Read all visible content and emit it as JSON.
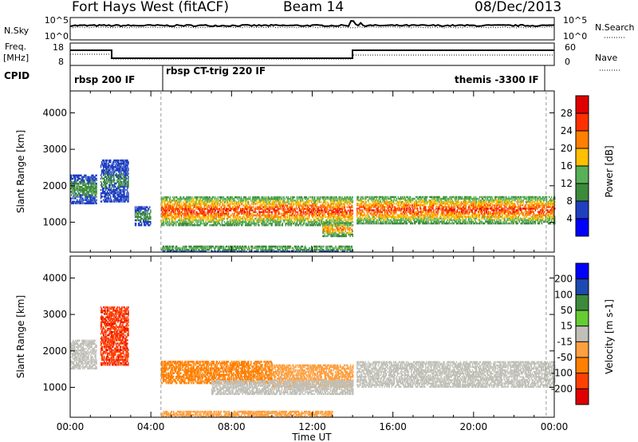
{
  "header": {
    "station": "Fort Hays West (fitACF)",
    "beam": "Beam 14",
    "date": "08/Dec/2013"
  },
  "top_strip": {
    "left_label": "N.Sky",
    "left_ticks": [
      "10^5",
      "10^0"
    ],
    "right_label": "N.Search",
    "right_ticks": [
      "10^5",
      "10^0"
    ]
  },
  "freq_strip": {
    "left_label_1": "Freq.",
    "left_label_2": "[MHz]",
    "left_ticks": [
      "18",
      "8"
    ],
    "right_label": "Nave",
    "right_ticks": [
      "60",
      "0"
    ]
  },
  "cpid": {
    "label": "CPID",
    "segments": [
      "rbsp 200 IF",
      "rbsp CT-trig 220 IF",
      "themis -3300 IF"
    ]
  },
  "x_axis": {
    "label": "Time UT",
    "ticks": [
      "00:00",
      "04:00",
      "08:00",
      "12:00",
      "16:00",
      "20:00",
      "00:00"
    ]
  },
  "colors": {
    "power_scale": [
      "#0000ff",
      "#2040c0",
      "#3c8a3c",
      "#58b058",
      "#ffc000",
      "#ff8000",
      "#ff3000",
      "#e00000"
    ],
    "velocity_scale": [
      "#0000ff",
      "#1c4ab0",
      "#3c8a3c",
      "#66cc33",
      "#c0c0b8",
      "#ffa040",
      "#ff8000",
      "#ff4000",
      "#e00000"
    ]
  },
  "chart_data": [
    {
      "type": "heatmap",
      "name": "power",
      "ylabel": "Slant Range [km]",
      "xlabel": "Time UT",
      "xlim_hours": [
        0,
        24
      ],
      "ylim_km": [
        180,
        4600
      ],
      "yticks": [
        "1000",
        "2000",
        "3000",
        "4000"
      ],
      "colorbar": {
        "label": "Power [dB]",
        "range": [
          0,
          32
        ],
        "ticks": [
          "4",
          "8",
          "12",
          "16",
          "20",
          "24",
          "28"
        ]
      },
      "scatter_regions": [
        {
          "t_start": 0.0,
          "t_end": 1.3,
          "range_low": 1500,
          "range_high": 2300,
          "power_peak": 10
        },
        {
          "t_start": 1.5,
          "t_end": 2.9,
          "range_low": 1550,
          "range_high": 2700,
          "power_peak": 8
        },
        {
          "t_start": 3.2,
          "t_end": 4.0,
          "range_low": 900,
          "range_high": 1400,
          "power_peak": 10
        },
        {
          "t_start": 4.5,
          "t_end": 14.0,
          "range_low": 900,
          "range_high": 1700,
          "power_peak": 28
        },
        {
          "t_start": 12.5,
          "t_end": 14.0,
          "range_low": 600,
          "range_high": 1000,
          "power_peak": 24
        },
        {
          "t_start": 14.2,
          "t_end": 24.0,
          "range_low": 950,
          "range_high": 1700,
          "power_peak": 28
        },
        {
          "t_start": 4.5,
          "t_end": 14.0,
          "range_low": 180,
          "range_high": 350,
          "power_peak": 14
        }
      ]
    },
    {
      "type": "heatmap",
      "name": "velocity",
      "ylabel": "Slant Range [km]",
      "xlabel": "Time UT",
      "xlim_hours": [
        0,
        24
      ],
      "ylim_km": [
        180,
        4600
      ],
      "yticks": [
        "1000",
        "2000",
        "3000",
        "4000"
      ],
      "colorbar": {
        "label": "Velocity [m s-1]",
        "range": [
          -250,
          250
        ],
        "ticks": [
          "200",
          "100",
          "50",
          "15",
          "-15",
          "-50",
          "-100",
          "-200"
        ]
      },
      "scatter_regions": [
        {
          "t_start": 0.0,
          "t_end": 1.3,
          "range_low": 1500,
          "range_high": 2300,
          "velocity": 0
        },
        {
          "t_start": 1.5,
          "t_end": 2.9,
          "range_low": 1600,
          "range_high": 3200,
          "velocity": -200
        },
        {
          "t_start": 4.5,
          "t_end": 10.0,
          "range_low": 1100,
          "range_high": 1700,
          "velocity": -120
        },
        {
          "t_start": 10.0,
          "t_end": 14.0,
          "range_low": 1000,
          "range_high": 1600,
          "velocity": -60
        },
        {
          "t_start": 7.0,
          "t_end": 14.0,
          "range_low": 800,
          "range_high": 1200,
          "velocity": 0
        },
        {
          "t_start": 14.2,
          "t_end": 24.0,
          "range_low": 1000,
          "range_high": 1700,
          "velocity": 0
        },
        {
          "t_start": 4.5,
          "t_end": 13.0,
          "range_low": 180,
          "range_high": 350,
          "velocity": -60
        }
      ]
    }
  ]
}
